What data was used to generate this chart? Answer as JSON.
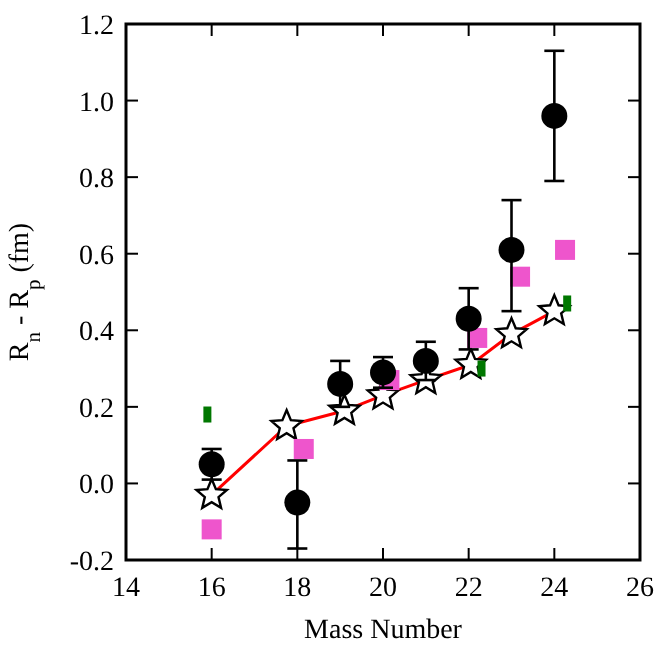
{
  "chart_data": {
    "type": "scatter",
    "xlabel": "Mass Number",
    "ylabel": "R$_{n}$ - R$_{p}$  (fm)",
    "xlim": [
      14,
      26
    ],
    "xticks": [
      14,
      16,
      18,
      20,
      22,
      24,
      26
    ],
    "ylim": [
      -0.2,
      1.2
    ],
    "yticks": [
      {
        "value": -0.2,
        "label": "-0.2"
      },
      {
        "value": 0,
        "label": "0.0"
      },
      {
        "value": 0.2,
        "label": "0.2"
      },
      {
        "value": 0.4,
        "label": "0.4"
      },
      {
        "value": 0.6,
        "label": "0.6"
      },
      {
        "value": 0.8,
        "label": "0.8"
      },
      {
        "value": 1,
        "label": "1.0"
      },
      {
        "value": 1.2,
        "label": "1.2"
      }
    ],
    "series": [
      {
        "type": "line",
        "color": "#ff0000",
        "marker": "star",
        "x": [
          16,
          17.75,
          19.1,
          20,
          21,
          22.05,
          23,
          24
        ],
        "values": [
          -0.03,
          0.15,
          0.19,
          0.23,
          0.27,
          0.31,
          0.39,
          0.45
        ]
      },
      {
        "type": "scatter",
        "color": "#ee55cc",
        "marker": "square",
        "x": [
          16,
          18.15,
          20.15,
          22.2,
          23.2,
          24.25
        ],
        "values": [
          -0.12,
          0.09,
          0.27,
          0.38,
          0.54,
          0.61
        ]
      },
      {
        "type": "scatter",
        "color": "#007700",
        "marker": "square",
        "x": [
          15.9,
          22.3,
          24.3
        ],
        "values": [
          0.18,
          0.3,
          0.47
        ]
      },
      {
        "color": "#000000",
        "marker": "circle",
        "x": [
          16,
          18,
          19,
          20,
          21,
          22,
          23,
          24
        ],
        "values": [
          0.05,
          -0.05,
          0.26,
          0.29,
          0.32,
          0.43,
          0.61,
          0.96
        ],
        "errors": [
          0.04,
          [
            -0.17,
            0.06
          ],
          0.06,
          0.04,
          0.05,
          0.08,
          [
            0.45,
            0.74
          ],
          0.17
        ]
      }
    ]
  }
}
